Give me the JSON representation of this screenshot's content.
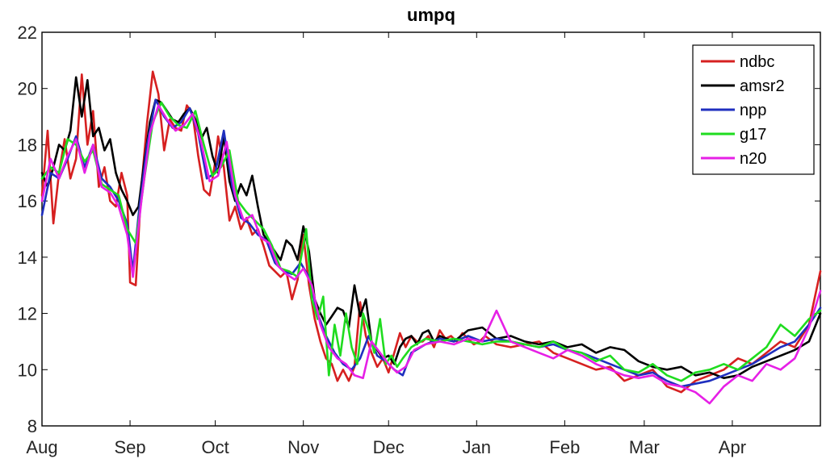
{
  "chart_data": {
    "type": "line",
    "title": "umpq",
    "xlabel": "",
    "ylabel": "",
    "x_ticks": [
      "Aug",
      "Sep",
      "Oct",
      "Nov",
      "Dec",
      "Jan",
      "Feb",
      "Mar",
      "Apr"
    ],
    "xlim_days": [
      0,
      274
    ],
    "ylim": [
      8,
      22
    ],
    "y_ticks": [
      8,
      10,
      12,
      14,
      16,
      18,
      20,
      22
    ],
    "grid": false,
    "legend_position": "top-right",
    "series": [
      {
        "name": "ndbc",
        "color": "#d62020",
        "x": [
          0,
          2,
          4,
          6,
          8,
          10,
          12,
          14,
          16,
          18,
          20,
          22,
          24,
          26,
          28,
          30,
          31,
          33,
          35,
          37,
          39,
          41,
          43,
          45,
          47,
          49,
          51,
          53,
          55,
          57,
          59,
          61,
          62,
          64,
          66,
          68,
          70,
          72,
          74,
          76,
          78,
          80,
          82,
          84,
          86,
          88,
          90,
          92,
          94,
          96,
          98,
          100,
          102,
          104,
          106,
          108,
          110,
          112,
          114,
          116,
          118,
          120,
          122,
          124,
          126,
          128,
          130,
          132,
          134,
          136,
          138,
          140,
          142,
          144,
          146,
          148,
          150,
          152,
          154,
          156,
          160,
          165,
          170,
          175,
          180,
          185,
          190,
          195,
          200,
          205,
          210,
          215,
          220,
          225,
          230,
          235,
          240,
          245,
          250,
          255,
          260,
          265,
          270,
          274
        ],
        "y": [
          16.2,
          18.5,
          15.2,
          17.0,
          18.2,
          16.8,
          17.5,
          20.5,
          18.0,
          19.2,
          16.5,
          17.2,
          16.0,
          15.8,
          17.0,
          16.2,
          13.1,
          13.0,
          16.5,
          18.8,
          20.6,
          19.8,
          17.8,
          18.9,
          18.6,
          18.5,
          19.4,
          19.1,
          17.6,
          16.4,
          16.2,
          17.4,
          18.3,
          17.2,
          15.3,
          15.8,
          15.0,
          15.4,
          14.8,
          15.0,
          14.4,
          13.7,
          13.5,
          13.3,
          13.5,
          12.5,
          13.2,
          14.8,
          13.0,
          11.8,
          11.0,
          10.4,
          10.2,
          9.6,
          10.0,
          9.6,
          10.1,
          12.4,
          11.2,
          10.6,
          10.1,
          10.4,
          9.9,
          10.6,
          11.3,
          10.8,
          11.2,
          11.0,
          11.0,
          11.2,
          10.8,
          11.4,
          11.1,
          11.2,
          11.0,
          11.3,
          11.1,
          10.9,
          11.0,
          11.2,
          10.9,
          10.8,
          10.9,
          11.0,
          10.6,
          10.4,
          10.2,
          10.0,
          10.1,
          9.6,
          9.8,
          10.0,
          9.4,
          9.2,
          9.6,
          9.8,
          10.0,
          10.4,
          10.2,
          10.6,
          11.0,
          10.8,
          11.6,
          13.5
        ]
      },
      {
        "name": "amsr2",
        "color": "#000000",
        "x": [
          0,
          2,
          4,
          6,
          8,
          10,
          12,
          14,
          16,
          18,
          20,
          22,
          24,
          26,
          28,
          30,
          32,
          34,
          36,
          38,
          40,
          42,
          44,
          46,
          48,
          50,
          52,
          54,
          56,
          58,
          60,
          62,
          64,
          66,
          68,
          70,
          72,
          74,
          76,
          78,
          80,
          82,
          84,
          86,
          88,
          90,
          92,
          94,
          96,
          98,
          100,
          102,
          104,
          106,
          108,
          110,
          112,
          114,
          116,
          118,
          120,
          122,
          124,
          126,
          128,
          130,
          132,
          134,
          136,
          138,
          140,
          145,
          150,
          155,
          160,
          165,
          170,
          175,
          180,
          185,
          190,
          195,
          200,
          205,
          210,
          215,
          220,
          225,
          230,
          235,
          240,
          245,
          250,
          255,
          260,
          265,
          270,
          274
        ],
        "y": [
          17.0,
          16.5,
          17.2,
          18.0,
          17.8,
          18.5,
          20.4,
          19.0,
          20.3,
          18.3,
          18.6,
          17.8,
          18.2,
          17.0,
          16.4,
          16.0,
          15.5,
          15.8,
          17.4,
          18.8,
          19.6,
          19.5,
          19.2,
          18.9,
          18.8,
          19.1,
          19.3,
          18.9,
          18.2,
          18.6,
          17.6,
          17.0,
          18.3,
          16.7,
          16.0,
          16.6,
          16.2,
          16.9,
          15.8,
          14.8,
          14.5,
          14.2,
          13.9,
          14.6,
          14.4,
          13.9,
          15.1,
          14.2,
          12.5,
          12.0,
          11.6,
          11.9,
          12.2,
          12.1,
          11.5,
          13.0,
          11.9,
          12.5,
          11.0,
          10.7,
          10.4,
          10.5,
          10.2,
          10.8,
          11.1,
          11.2,
          10.9,
          11.3,
          11.4,
          11.0,
          11.2,
          11.0,
          11.4,
          11.5,
          11.1,
          11.2,
          11.0,
          10.9,
          11.0,
          10.8,
          10.9,
          10.6,
          10.8,
          10.7,
          10.3,
          10.1,
          10.0,
          10.1,
          9.8,
          9.9,
          9.7,
          9.8,
          10.1,
          10.3,
          10.5,
          10.7,
          11.0,
          12.0
        ]
      },
      {
        "name": "npp",
        "color": "#1f2fbf",
        "x": [
          0,
          3,
          6,
          9,
          12,
          15,
          18,
          21,
          24,
          27,
          30,
          32,
          34,
          37,
          40,
          43,
          46,
          49,
          52,
          55,
          58,
          61,
          64,
          67,
          70,
          73,
          76,
          79,
          82,
          85,
          88,
          91,
          94,
          97,
          100,
          103,
          106,
          109,
          112,
          115,
          118,
          121,
          124,
          127,
          130,
          135,
          140,
          145,
          150,
          155,
          160,
          165,
          170,
          175,
          180,
          185,
          190,
          195,
          200,
          205,
          210,
          215,
          220,
          225,
          230,
          235,
          240,
          245,
          250,
          255,
          260,
          265,
          270,
          274
        ],
        "y": [
          15.5,
          17.0,
          16.8,
          17.5,
          18.3,
          17.2,
          18.0,
          16.8,
          16.5,
          16.0,
          15.2,
          13.5,
          15.5,
          18.0,
          19.6,
          19.0,
          18.6,
          18.8,
          19.3,
          18.4,
          16.8,
          17.0,
          18.5,
          16.5,
          15.4,
          15.2,
          14.8,
          14.6,
          13.8,
          13.5,
          13.4,
          13.8,
          13.3,
          12.0,
          11.2,
          10.6,
          10.2,
          10.0,
          10.4,
          11.2,
          10.5,
          10.3,
          10.0,
          9.8,
          10.6,
          10.9,
          11.1,
          11.0,
          11.2,
          11.0,
          11.1,
          11.0,
          10.9,
          10.8,
          10.9,
          10.7,
          10.6,
          10.4,
          10.2,
          10.0,
          9.8,
          9.9,
          9.6,
          9.4,
          9.5,
          9.6,
          9.8,
          10.0,
          10.2,
          10.5,
          10.8,
          11.0,
          11.6,
          12.2
        ]
      },
      {
        "name": "g17",
        "color": "#1fdc1f",
        "x": [
          0,
          3,
          6,
          9,
          12,
          15,
          18,
          21,
          24,
          27,
          30,
          33,
          36,
          39,
          42,
          45,
          48,
          51,
          54,
          57,
          60,
          63,
          66,
          69,
          72,
          75,
          78,
          81,
          84,
          87,
          90,
          93,
          95,
          97,
          99,
          101,
          103,
          105,
          107,
          109,
          111,
          113,
          115,
          117,
          119,
          121,
          123,
          125,
          127,
          130,
          135,
          140,
          145,
          150,
          155,
          160,
          165,
          170,
          175,
          180,
          185,
          190,
          195,
          200,
          205,
          210,
          215,
          220,
          225,
          230,
          235,
          240,
          245,
          250,
          255,
          260,
          265,
          270,
          274
        ],
        "y": [
          16.8,
          17.2,
          17.0,
          18.2,
          18.0,
          17.4,
          17.8,
          16.6,
          16.4,
          16.2,
          15.0,
          14.5,
          16.8,
          18.8,
          19.5,
          19.0,
          18.7,
          18.6,
          19.2,
          18.0,
          16.9,
          17.2,
          17.8,
          16.0,
          15.6,
          15.3,
          15.0,
          14.4,
          13.6,
          13.5,
          13.3,
          15.0,
          12.5,
          11.8,
          12.6,
          9.8,
          11.6,
          10.5,
          12.0,
          10.8,
          10.2,
          12.0,
          11.4,
          10.6,
          11.8,
          10.2,
          10.5,
          10.1,
          10.4,
          10.8,
          11.1,
          11.0,
          11.1,
          11.0,
          10.9,
          11.0,
          11.0,
          10.9,
          10.8,
          11.0,
          10.7,
          10.6,
          10.3,
          10.5,
          10.0,
          9.9,
          10.2,
          9.8,
          9.6,
          9.9,
          10.0,
          10.2,
          10.0,
          10.4,
          10.8,
          11.6,
          11.2,
          11.8,
          12.1
        ]
      },
      {
        "name": "n20",
        "color": "#e620e6",
        "x": [
          0,
          3,
          6,
          9,
          12,
          15,
          18,
          21,
          24,
          27,
          30,
          32,
          35,
          38,
          41,
          44,
          47,
          50,
          53,
          56,
          59,
          62,
          65,
          68,
          71,
          74,
          77,
          80,
          83,
          86,
          89,
          92,
          95,
          98,
          101,
          104,
          107,
          110,
          113,
          116,
          119,
          122,
          125,
          128,
          131,
          135,
          140,
          145,
          150,
          155,
          160,
          165,
          170,
          175,
          180,
          185,
          190,
          195,
          200,
          205,
          210,
          215,
          220,
          225,
          230,
          235,
          240,
          245,
          250,
          255,
          260,
          265,
          270,
          274
        ],
        "y": [
          16.0,
          17.5,
          16.8,
          17.6,
          18.2,
          17.0,
          18.0,
          16.5,
          16.3,
          15.8,
          14.8,
          13.3,
          16.0,
          18.4,
          19.4,
          18.9,
          18.5,
          18.7,
          19.1,
          18.1,
          16.7,
          16.9,
          18.1,
          16.2,
          15.3,
          15.5,
          14.7,
          14.5,
          13.7,
          13.4,
          13.2,
          13.6,
          13.0,
          11.6,
          10.8,
          10.4,
          10.2,
          9.8,
          9.7,
          11.0,
          10.6,
          10.2,
          9.9,
          10.1,
          10.7,
          10.9,
          11.0,
          10.9,
          11.1,
          11.0,
          12.1,
          11.0,
          10.8,
          10.6,
          10.4,
          10.7,
          10.5,
          10.2,
          10.0,
          9.8,
          9.7,
          9.8,
          9.5,
          9.4,
          9.2,
          8.8,
          9.4,
          9.8,
          9.6,
          10.2,
          10.0,
          10.4,
          11.5,
          12.8
        ]
      }
    ]
  }
}
